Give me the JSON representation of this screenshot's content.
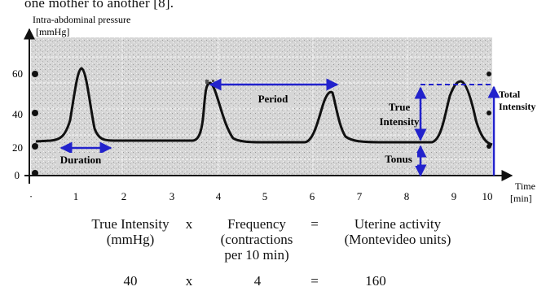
{
  "top_text": "one mother to another [8].",
  "y_axis": {
    "title_line1": "Intra-abdominal pressure",
    "title_line2": "[mmHg]",
    "ticks": [
      "0",
      "20",
      "40",
      "60"
    ]
  },
  "x_axis": {
    "title_line1": "Time",
    "title_line2": "[min]",
    "ticks": [
      "1",
      "2",
      "3",
      "4",
      "5",
      "6",
      "7",
      "8",
      "9",
      "10"
    ]
  },
  "annotations": {
    "duration": "Duration",
    "period": "Period",
    "true_intensity_line1": "True",
    "true_intensity_line2": "Intensity",
    "tonus": "Tonus",
    "total_intensity_line1": "Total",
    "total_intensity_line2": "Intensity"
  },
  "formula": {
    "term1_line1": "True Intensity",
    "term1_line2": "(mmHg)",
    "op1": "x",
    "term2_line1": "Frequency",
    "term2_line2": "(contractions",
    "term2_line3": "per 10 min)",
    "eq": "=",
    "term3_line1": "Uterine activity",
    "term3_line2": "(Montevideo units)",
    "example_intensity": "40",
    "example_op": "x",
    "example_frequency": "4",
    "example_eq": "=",
    "example_result": "160"
  },
  "colors": {
    "annotation_arrow": "#2222cc",
    "trace": "#111111",
    "paper": "#d4d4d4"
  }
}
